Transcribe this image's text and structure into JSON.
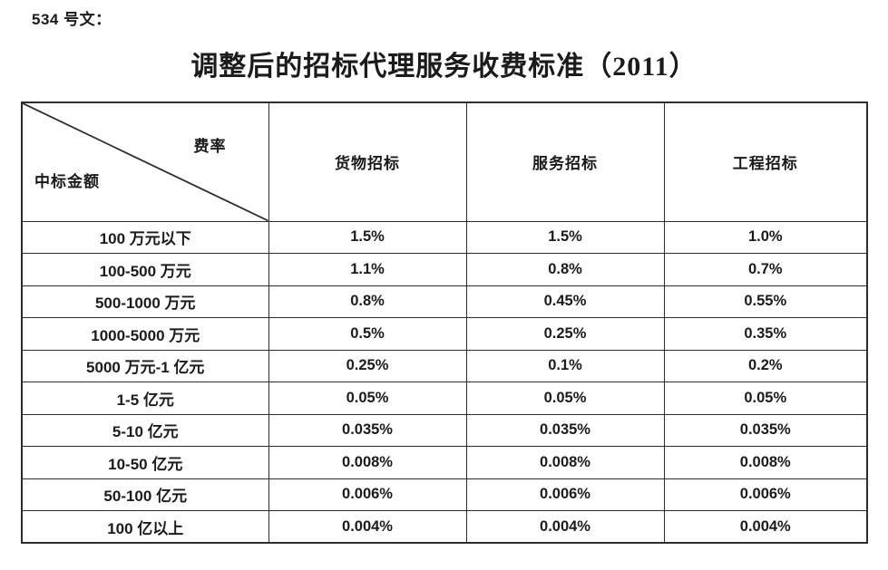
{
  "page": {
    "doc_ref": "534 号文：",
    "title": "调整后的招标代理服务收费标准（2011）"
  },
  "table": {
    "corner": {
      "fee_rate_label": "费率",
      "bid_amount_label": "中标金额"
    },
    "column_headers": [
      "货物招标",
      "服务招标",
      "工程招标"
    ],
    "rows": [
      {
        "range": "100 万元以下",
        "values": [
          "1.5%",
          "1.5%",
          "1.0%"
        ]
      },
      {
        "range": "100-500 万元",
        "values": [
          "1.1%",
          "0.8%",
          "0.7%"
        ]
      },
      {
        "range": "500-1000 万元",
        "values": [
          "0.8%",
          "0.45%",
          "0.55%"
        ]
      },
      {
        "range": "1000-5000 万元",
        "values": [
          "0.5%",
          "0.25%",
          "0.35%"
        ]
      },
      {
        "range": "5000 万元-1 亿元",
        "values": [
          "0.25%",
          "0.1%",
          "0.2%"
        ]
      },
      {
        "range": "1-5 亿元",
        "values": [
          "0.05%",
          "0.05%",
          "0.05%"
        ]
      },
      {
        "range": "5-10 亿元",
        "values": [
          "0.035%",
          "0.035%",
          "0.035%"
        ]
      },
      {
        "range": "10-50 亿元",
        "values": [
          "0.008%",
          "0.008%",
          "0.008%"
        ]
      },
      {
        "range": "50-100 亿元",
        "values": [
          "0.006%",
          "0.006%",
          "0.006%"
        ]
      },
      {
        "range": "100 亿以上",
        "values": [
          "0.004%",
          "0.004%",
          "0.004%"
        ]
      }
    ]
  },
  "colors": {
    "background": "#ffffff",
    "text": "#1b1b1b",
    "border": "#2d2d2d"
  }
}
